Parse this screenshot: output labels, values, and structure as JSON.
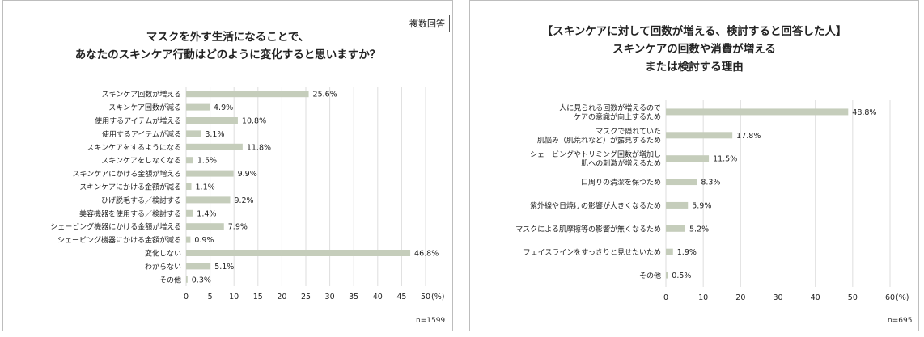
{
  "charts": {
    "left": {
      "badge": "複数回答",
      "n_label": "n=1599",
      "unit": "(%)"
    },
    "right": {
      "n_label": "n=695",
      "unit": "(%)"
    }
  },
  "chart_data": [
    {
      "type": "bar",
      "orientation": "horizontal",
      "title": "マスクを外す生活になることで、\nあなたのスキンケア行動はどのように変化すると思いますか？",
      "categories": [
        "スキンケア回数が増える",
        "スキンケア回数が減る",
        "使用するアイテムが増える",
        "使用するアイテムが減る",
        "スキンケアをするようになる",
        "スキンケアをしなくなる",
        "スキンケアにかける金額が増える",
        "スキンケアにかける金額が減る",
        "ひげ脱毛する／検討する",
        "美容機器を使用する／検討する",
        "シェービング機器にかける金額が増える",
        "シェービング機器にかける金額が減る",
        "変化しない",
        "わからない",
        "その他"
      ],
      "values": [
        25.6,
        4.9,
        10.8,
        3.1,
        11.8,
        1.5,
        9.9,
        1.1,
        9.2,
        1.4,
        7.9,
        0.9,
        46.8,
        5.1,
        0.3
      ],
      "value_labels": [
        "25.6%",
        "4.9%",
        "10.8%",
        "3.1%",
        "11.8%",
        "1.5%",
        "9.9%",
        "1.1%",
        "9.2%",
        "1.4%",
        "7.9%",
        "0.9%",
        "46.8%",
        "5.1%",
        "0.3%"
      ],
      "xlim": [
        0,
        50
      ],
      "xticks": [
        "0",
        "5",
        "10",
        "15",
        "20",
        "25",
        "30",
        "35",
        "40",
        "45",
        "50"
      ],
      "grid": true,
      "bar_color": "#c5cdbb"
    },
    {
      "type": "bar",
      "orientation": "horizontal",
      "title": "【スキンケアに対して回数が増える、検討すると回答した人】\nスキンケアの回数や消費が増える\nまたは検討する理由",
      "categories": [
        "人に見られる回数が増えるので\nケアの意識が向上するため",
        "マスクで隠れていた\n肌悩み（肌荒れなど）が露見するため",
        "シェービングやトリミング回数が増加し\n肌への刺激が増えるため",
        "口周りの清潔を保つため",
        "紫外線や日焼けの影響が大きくなるため",
        "マスクによる肌摩擦等の影響が無くなるため",
        "フェイスラインをすっきりと見せたいため",
        "その他"
      ],
      "values": [
        48.8,
        17.8,
        11.5,
        8.3,
        5.9,
        5.2,
        1.9,
        0.5
      ],
      "value_labels": [
        "48.8%",
        "17.8%",
        "11.5%",
        "8.3%",
        "5.9%",
        "5.2%",
        "1.9%",
        "0.5%"
      ],
      "xlim": [
        0,
        60
      ],
      "xticks": [
        "0",
        "10",
        "20",
        "30",
        "40",
        "50",
        "60"
      ],
      "grid": true,
      "bar_color": "#c5cdbb"
    }
  ]
}
